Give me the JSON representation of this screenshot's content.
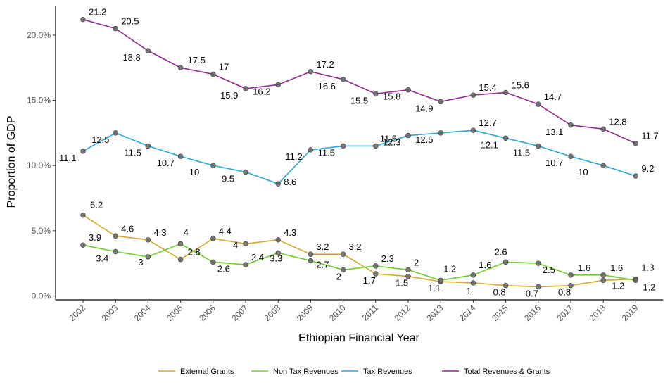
{
  "chart_data": {
    "type": "line",
    "title": "",
    "xlabel": "Ethiopian Financial Year",
    "ylabel": "Proportion of GDP",
    "x": [
      "2002",
      "2003",
      "2004",
      "2005",
      "2006",
      "2007",
      "2008",
      "2009",
      "2010",
      "2011",
      "2012",
      "2013",
      "2014",
      "2015",
      "2016",
      "2017",
      "2018",
      "2019"
    ],
    "yticks": [
      "0.0%",
      "5.0%",
      "10.0%",
      "15.0%",
      "20.0%"
    ],
    "ylim": [
      0,
      22.3
    ],
    "grid": false,
    "legend_position": "bottom",
    "series": [
      {
        "name": "External Grants",
        "color": "#d4a72c",
        "values": [
          6.2,
          4.6,
          4.3,
          2.8,
          4.4,
          4,
          4.3,
          3.2,
          3.2,
          1.7,
          1.5,
          1.1,
          1,
          0.8,
          0.7,
          0.8,
          1.2,
          1.3
        ]
      },
      {
        "name": "Non Tax Revenues",
        "color": "#6fce2b",
        "values": [
          3.9,
          3.4,
          3,
          4,
          2.6,
          2.4,
          3.3,
          2.7,
          2,
          2.3,
          2,
          1.2,
          1.6,
          2.6,
          2.5,
          1.6,
          1.6,
          1.2
        ]
      },
      {
        "name": "Tax Revenues",
        "color": "#2aa8d8",
        "values": [
          11.1,
          12.5,
          11.5,
          10.7,
          10,
          9.5,
          8.6,
          11.2,
          11.5,
          11.5,
          12.3,
          12.5,
          12.7,
          12.1,
          11.5,
          10.7,
          10,
          9.2
        ]
      },
      {
        "name": "Total Revenues & Grants",
        "color": "#92278f",
        "values": [
          21.2,
          20.5,
          18.8,
          17.5,
          17,
          15.9,
          16.2,
          17.2,
          16.6,
          15.5,
          15.8,
          14.9,
          15.4,
          15.6,
          14.7,
          13.1,
          12.8,
          11.7
        ]
      }
    ],
    "data_labels": [
      [
        "6.2",
        "4.6",
        "4.3",
        "2.8",
        "4.4",
        "4",
        "4.3",
        "3.2",
        "3.2",
        "1.7",
        "1.5",
        "1.1",
        "1",
        "0.8",
        "0.7",
        "0.8",
        "1.2",
        "1.3"
      ],
      [
        "3.9",
        "3.4",
        "3",
        "4",
        "2.6",
        "2.4",
        "3.3",
        "2.7",
        "2",
        "2.3",
        "2",
        "1.2",
        "1.6",
        "2.6",
        "2.5",
        "1.6",
        "1.6",
        "1.2"
      ],
      [
        "11.1",
        "12.5",
        "11.5",
        "10.7",
        "10",
        "9.5",
        "8.6",
        "11.2",
        "11.5",
        "11.5",
        "12.3",
        "12.5",
        "12.7",
        "12.1",
        "11.5",
        "10.7",
        "10",
        "9.2"
      ],
      [
        "21.2",
        "20.5",
        "18.8",
        "17.5",
        "17",
        "15.9",
        "16.2",
        "17.2",
        "16.6",
        "15.5",
        "15.8",
        "14.9",
        "15.4",
        "15.6",
        "14.7",
        "13.1",
        "12.8",
        "11.7"
      ]
    ]
  }
}
